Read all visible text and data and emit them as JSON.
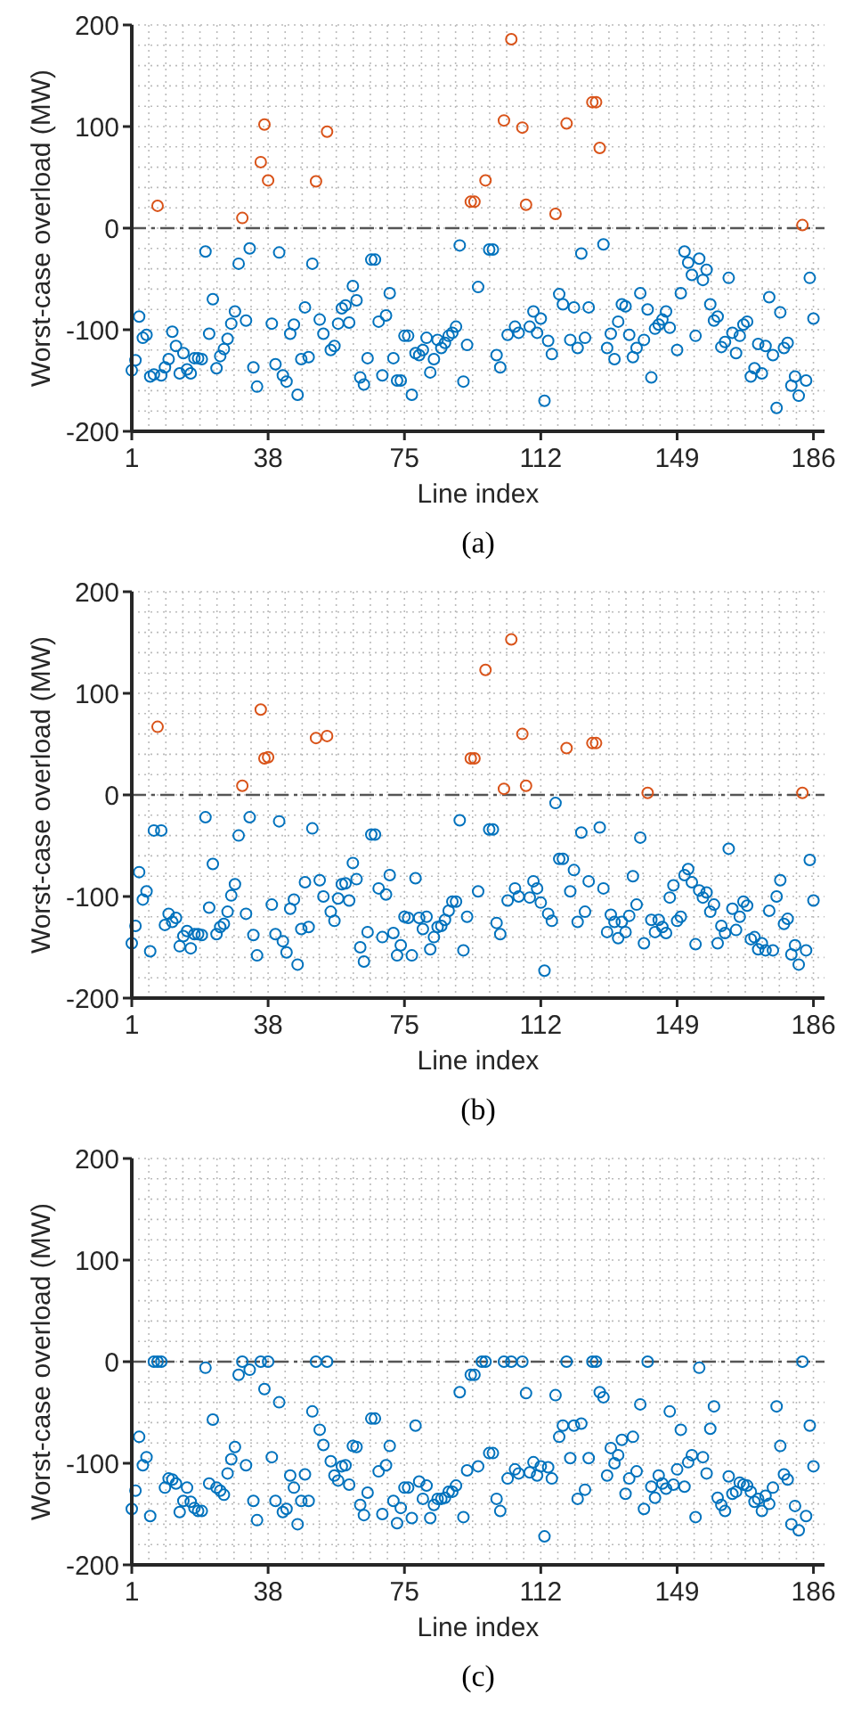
{
  "chart_data": [
    {
      "type": "scatter",
      "xlabel": "Line index",
      "ylabel": "Worst-case overload (MW)",
      "annotations": [
        "(a)"
      ],
      "xlim": [
        1,
        189
      ],
      "xticks": [
        1,
        38,
        75,
        112,
        149,
        186
      ],
      "ylim": [
        -200,
        200
      ],
      "yticks": [
        -200,
        -100,
        0,
        100,
        200
      ],
      "grid": true,
      "marker": "circle",
      "ref_lines": [
        {
          "axis": "y",
          "value": 0,
          "color": "#555555",
          "line_style": "dashdot"
        }
      ],
      "series": [
        {
          "color": "#0072bd",
          "x": [
            1,
            2,
            3,
            4,
            5,
            6,
            7,
            9,
            10,
            11,
            12,
            13,
            14,
            15,
            16,
            17,
            18,
            19,
            20,
            21,
            22,
            23,
            24,
            25,
            26,
            27,
            28,
            29,
            30,
            32,
            33,
            34,
            35,
            39,
            40,
            41,
            42,
            43,
            44,
            45,
            46,
            47,
            48,
            49,
            50,
            52,
            53,
            55,
            56,
            57,
            58,
            59,
            60,
            61,
            62,
            63,
            64,
            65,
            66,
            67,
            68,
            69,
            70,
            71,
            72,
            73,
            74,
            75,
            76,
            77,
            78,
            79,
            80,
            81,
            82,
            83,
            84,
            85,
            86,
            87,
            88,
            89,
            90,
            91,
            92,
            95,
            98,
            99,
            100,
            101,
            103,
            105,
            106,
            109,
            110,
            111,
            112,
            113,
            114,
            115,
            117,
            118,
            120,
            121,
            122,
            123,
            124,
            125,
            129,
            130,
            131,
            132,
            133,
            134,
            135,
            136,
            137,
            138,
            139,
            140,
            141,
            142,
            143,
            144,
            145,
            146,
            147,
            149,
            150,
            151,
            152,
            153,
            154,
            155,
            156,
            157,
            158,
            159,
            160,
            161,
            162,
            163,
            164,
            165,
            166,
            167,
            168,
            169,
            170,
            171,
            172,
            173,
            174,
            175,
            176,
            177,
            178,
            179,
            180,
            181,
            182,
            184,
            185,
            186
          ],
          "values": [
            -140,
            -130,
            -87,
            -108,
            -105,
            -146,
            -144,
            -145,
            -137,
            -129,
            -102,
            -116,
            -143,
            -123,
            -139,
            -143,
            -128,
            -128,
            -129,
            -23,
            -104,
            -70,
            -138,
            -126,
            -119,
            -109,
            -94,
            -82,
            -35,
            -91,
            -20,
            -137,
            -156,
            -94,
            -134,
            -24,
            -145,
            -151,
            -104,
            -95,
            -164,
            -129,
            -78,
            -127,
            -35,
            -90,
            -104,
            -120,
            -116,
            -94,
            -79,
            -76,
            -93,
            -57,
            -71,
            -147,
            -154,
            -128,
            -31,
            -31,
            -92,
            -145,
            -86,
            -64,
            -128,
            -150,
            -150,
            -106,
            -106,
            -164,
            -123,
            -125,
            -120,
            -108,
            -142,
            -129,
            -110,
            -118,
            -113,
            -106,
            -103,
            -97,
            -17,
            -151,
            -115,
            -58,
            -21,
            -21,
            -125,
            -137,
            -105,
            -97,
            -103,
            -97,
            -82,
            -103,
            -89,
            -170,
            -111,
            -124,
            -65,
            -75,
            -110,
            -78,
            -118,
            -25,
            -108,
            -78,
            -16,
            -118,
            -104,
            -129,
            -92,
            -75,
            -77,
            -105,
            -127,
            -118,
            -64,
            -110,
            -80,
            -147,
            -99,
            -95,
            -90,
            -82,
            -98,
            -120,
            -64,
            -23,
            -34,
            -46,
            -106,
            -30,
            -51,
            -41,
            -75,
            -91,
            -87,
            -117,
            -112,
            -49,
            -103,
            -123,
            -106,
            -95,
            -92,
            -146,
            -138,
            -114,
            -143,
            -116,
            -68,
            -125,
            -177,
            -83,
            -118,
            -113,
            -155,
            -146,
            -165,
            -150,
            -49,
            -89
          ]
        },
        {
          "color": "#d95319",
          "x": [
            8,
            31,
            36,
            37,
            38,
            51,
            54,
            93,
            94,
            97,
            102,
            104,
            107,
            108,
            116,
            119,
            126,
            127,
            128,
            183
          ],
          "values": [
            22,
            10,
            65,
            102,
            47,
            46,
            95,
            26,
            26,
            47,
            106,
            186,
            99,
            23,
            14,
            103,
            124,
            124,
            79,
            3
          ]
        }
      ]
    },
    {
      "type": "scatter",
      "xlabel": "Line index",
      "ylabel": "Worst-case overload (MW)",
      "annotations": [
        "(b)"
      ],
      "xlim": [
        1,
        189
      ],
      "xticks": [
        1,
        38,
        75,
        112,
        149,
        186
      ],
      "ylim": [
        -200,
        200
      ],
      "yticks": [
        -200,
        -100,
        0,
        100,
        200
      ],
      "grid": true,
      "marker": "circle",
      "ref_lines": [
        {
          "axis": "y",
          "value": 0,
          "color": "#555555",
          "line_style": "dashdot"
        }
      ],
      "series": [
        {
          "color": "#0072bd",
          "x": [
            1,
            2,
            3,
            4,
            5,
            6,
            7,
            9,
            10,
            11,
            12,
            13,
            14,
            15,
            16,
            17,
            18,
            19,
            20,
            21,
            22,
            23,
            24,
            25,
            26,
            27,
            28,
            29,
            30,
            32,
            33,
            34,
            35,
            39,
            40,
            41,
            42,
            43,
            44,
            45,
            46,
            47,
            48,
            49,
            50,
            52,
            53,
            55,
            56,
            57,
            58,
            59,
            60,
            61,
            62,
            63,
            64,
            65,
            66,
            67,
            68,
            69,
            70,
            71,
            72,
            73,
            74,
            75,
            76,
            77,
            78,
            79,
            80,
            81,
            82,
            83,
            84,
            85,
            86,
            87,
            88,
            89,
            90,
            91,
            92,
            95,
            98,
            99,
            100,
            101,
            103,
            105,
            106,
            109,
            110,
            111,
            112,
            113,
            114,
            115,
            116,
            117,
            118,
            120,
            121,
            122,
            123,
            124,
            125,
            128,
            129,
            130,
            131,
            132,
            133,
            134,
            135,
            136,
            137,
            138,
            139,
            140,
            142,
            143,
            144,
            145,
            146,
            147,
            148,
            149,
            150,
            151,
            152,
            153,
            154,
            155,
            156,
            157,
            158,
            159,
            160,
            161,
            162,
            163,
            164,
            165,
            166,
            167,
            168,
            169,
            170,
            171,
            172,
            173,
            174,
            175,
            176,
            177,
            178,
            179,
            180,
            181,
            182,
            184,
            185,
            186
          ],
          "values": [
            -146,
            -129,
            -76,
            -103,
            -95,
            -154,
            -35,
            -35,
            -128,
            -117,
            -125,
            -121,
            -149,
            -139,
            -134,
            -151,
            -137,
            -137,
            -138,
            -22,
            -111,
            -68,
            -137,
            -130,
            -127,
            -115,
            -99,
            -88,
            -40,
            -117,
            -22,
            -138,
            -158,
            -108,
            -137,
            -26,
            -144,
            -155,
            -112,
            -103,
            -167,
            -132,
            -86,
            -130,
            -33,
            -84,
            -100,
            -115,
            -124,
            -102,
            -88,
            -87,
            -104,
            -67,
            -83,
            -150,
            -164,
            -135,
            -39,
            -39,
            -92,
            -140,
            -98,
            -79,
            -136,
            -158,
            -148,
            -120,
            -121,
            -158,
            -82,
            -121,
            -132,
            -120,
            -152,
            -140,
            -130,
            -129,
            -123,
            -114,
            -105,
            -105,
            -25,
            -153,
            -120,
            -95,
            -34,
            -34,
            -126,
            -137,
            -104,
            -92,
            -100,
            -101,
            -85,
            -92,
            -106,
            -173,
            -117,
            -124,
            -8,
            -63,
            -63,
            -95,
            -74,
            -125,
            -37,
            -115,
            -85,
            -32,
            -92,
            -135,
            -118,
            -125,
            -141,
            -125,
            -135,
            -119,
            -80,
            -108,
            -42,
            -146,
            -123,
            -135,
            -123,
            -130,
            -136,
            -101,
            -89,
            -124,
            -120,
            -79,
            -73,
            -86,
            -147,
            -94,
            -101,
            -96,
            -115,
            -108,
            -146,
            -129,
            -136,
            -53,
            -112,
            -133,
            -120,
            -105,
            -109,
            -142,
            -140,
            -152,
            -146,
            -153,
            -114,
            -153,
            -100,
            -84,
            -127,
            -122,
            -157,
            -148,
            -167,
            -153,
            -64,
            -104
          ]
        },
        {
          "color": "#d95319",
          "x": [
            8,
            31,
            36,
            37,
            38,
            51,
            54,
            93,
            94,
            97,
            102,
            104,
            107,
            108,
            119,
            126,
            127,
            141,
            183
          ],
          "values": [
            67,
            9,
            84,
            36,
            37,
            56,
            58,
            36,
            36,
            123,
            6,
            153,
            60,
            9,
            46,
            51,
            51,
            2,
            2
          ]
        }
      ]
    },
    {
      "type": "scatter",
      "xlabel": "Line index",
      "ylabel": "Worst-case overload (MW)",
      "annotations": [
        "(c)"
      ],
      "xlim": [
        1,
        189
      ],
      "xticks": [
        1,
        38,
        75,
        112,
        149,
        186
      ],
      "ylim": [
        -200,
        200
      ],
      "yticks": [
        -200,
        -100,
        0,
        100,
        200
      ],
      "grid": true,
      "marker": "circle",
      "ref_lines": [
        {
          "axis": "y",
          "value": 0,
          "color": "#555555",
          "line_style": "dashdot"
        }
      ],
      "series": [
        {
          "color": "#0072bd",
          "x": [
            1,
            2,
            3,
            4,
            5,
            6,
            7,
            8,
            9,
            10,
            11,
            12,
            13,
            14,
            15,
            16,
            17,
            18,
            19,
            20,
            21,
            22,
            23,
            24,
            25,
            26,
            27,
            28,
            29,
            30,
            31,
            32,
            33,
            34,
            35,
            36,
            37,
            38,
            39,
            40,
            41,
            42,
            43,
            44,
            45,
            46,
            47,
            48,
            49,
            50,
            51,
            52,
            53,
            54,
            55,
            56,
            57,
            58,
            59,
            60,
            61,
            62,
            63,
            64,
            65,
            66,
            67,
            68,
            69,
            70,
            71,
            72,
            73,
            74,
            75,
            76,
            77,
            78,
            79,
            80,
            81,
            82,
            83,
            84,
            85,
            86,
            87,
            88,
            89,
            90,
            91,
            92,
            93,
            94,
            95,
            96,
            97,
            98,
            99,
            100,
            101,
            102,
            103,
            104,
            105,
            106,
            107,
            108,
            109,
            110,
            111,
            112,
            113,
            114,
            115,
            116,
            117,
            118,
            119,
            120,
            121,
            122,
            123,
            124,
            125,
            126,
            127,
            128,
            129,
            130,
            131,
            132,
            133,
            134,
            135,
            136,
            137,
            138,
            139,
            140,
            141,
            142,
            143,
            144,
            145,
            146,
            147,
            148,
            149,
            150,
            151,
            152,
            153,
            154,
            155,
            156,
            157,
            158,
            159,
            160,
            161,
            162,
            163,
            164,
            165,
            166,
            167,
            168,
            169,
            170,
            171,
            172,
            173,
            174,
            175,
            176,
            177,
            178,
            179,
            180,
            181,
            182,
            183,
            184,
            185,
            186
          ],
          "values": [
            -145,
            -127,
            -74,
            -102,
            -94,
            -152,
            0,
            0,
            0,
            -124,
            -115,
            -116,
            -120,
            -148,
            -137,
            -124,
            -138,
            -144,
            -147,
            -147,
            -6,
            -120,
            -57,
            -124,
            -127,
            -131,
            -110,
            -96,
            -84,
            -13,
            0,
            -102,
            -8,
            -137,
            -156,
            0,
            -27,
            0,
            -94,
            -137,
            -40,
            -148,
            -145,
            -112,
            -124,
            -160,
            -137,
            -111,
            -137,
            -49,
            0,
            -67,
            -82,
            0,
            -98,
            -112,
            -117,
            -103,
            -102,
            -121,
            -83,
            -84,
            -141,
            -151,
            -129,
            -56,
            -56,
            -108,
            -150,
            -102,
            -83,
            -137,
            -159,
            -144,
            -124,
            -124,
            -154,
            -63,
            -118,
            -135,
            -122,
            -154,
            -141,
            -135,
            -135,
            -134,
            -128,
            -128,
            -122,
            -30,
            -153,
            -107,
            -13,
            -13,
            -103,
            0,
            0,
            -90,
            -90,
            -135,
            -147,
            0,
            -115,
            0,
            -106,
            -110,
            0,
            -31,
            -109,
            -99,
            -112,
            -103,
            -172,
            -104,
            -115,
            -33,
            -74,
            -63,
            0,
            -95,
            -63,
            -135,
            -61,
            -126,
            -95,
            0,
            0,
            -30,
            -35,
            -112,
            -85,
            -100,
            -92,
            -77,
            -130,
            -115,
            -74,
            -108,
            -42,
            -145,
            0,
            -123,
            -134,
            -112,
            -120,
            -125,
            -49,
            -121,
            -106,
            -67,
            -123,
            -99,
            -92,
            -153,
            -6,
            -94,
            -110,
            -66,
            -44,
            -134,
            -141,
            -147,
            -113,
            -130,
            -128,
            -119,
            -121,
            -122,
            -128,
            -138,
            -135,
            -147,
            -132,
            -140,
            -124,
            -44,
            -83,
            -111,
            -116,
            -160,
            -142,
            -166,
            0,
            -152,
            -63,
            -103
          ]
        }
      ]
    }
  ]
}
